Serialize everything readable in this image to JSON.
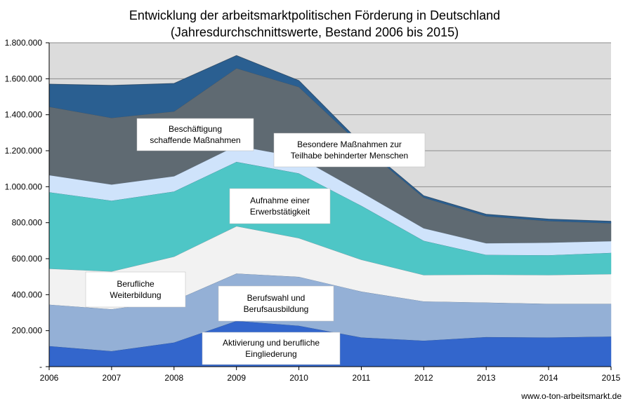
{
  "chart_data": {
    "type": "area",
    "stacked": true,
    "title": "Entwicklung der arbeitsmarktpolitischen Förderung in Deutschland",
    "subtitle": "(Jahresdurchschnittswerte, Bestand 2006 bis 2015)",
    "x": [
      "2006",
      "2007",
      "2008",
      "2009",
      "2010",
      "2011",
      "2012",
      "2013",
      "2014",
      "2015"
    ],
    "ylim": [
      0,
      1800000
    ],
    "yticks": [
      {
        "value": 0,
        "label": "-"
      },
      {
        "value": 200000,
        "label": "200.000"
      },
      {
        "value": 400000,
        "label": "400.000"
      },
      {
        "value": 600000,
        "label": "600.000"
      },
      {
        "value": 800000,
        "label": "800.000"
      },
      {
        "value": 1000000,
        "label": "1.000.000"
      },
      {
        "value": 1200000,
        "label": "1.200.000"
      },
      {
        "value": 1400000,
        "label": "1.400.000"
      },
      {
        "value": 1600000,
        "label": "1.600.000"
      },
      {
        "value": 1800000,
        "label": "1.800.000"
      }
    ],
    "grid": true,
    "plot_background": "#dcdcdc",
    "series": [
      {
        "color": "#3366cc",
        "values": [
          115000,
          87000,
          135000,
          255000,
          228000,
          163000,
          145000,
          165000,
          163000,
          168000
        ]
      },
      {
        "color": "#94b0d6",
        "values": [
          230000,
          233000,
          232000,
          263000,
          272000,
          255000,
          218000,
          192000,
          187000,
          182000
        ]
      },
      {
        "color": "#f2f2f2",
        "values": [
          200000,
          210000,
          245000,
          263000,
          215000,
          177000,
          147000,
          155000,
          160000,
          165000
        ]
      },
      {
        "color": "#4ec6c6",
        "values": [
          425000,
          393000,
          362000,
          358000,
          360000,
          300000,
          190000,
          110000,
          110000,
          118000
        ]
      },
      {
        "color": "#cfe3fb",
        "values": [
          95000,
          90000,
          85000,
          90000,
          90000,
          75000,
          70000,
          65000,
          70000,
          65000
        ]
      },
      {
        "color": "#5f6a72",
        "values": [
          380000,
          370000,
          360000,
          430000,
          390000,
          260000,
          170000,
          150000,
          120000,
          100000
        ]
      },
      {
        "color": "#2a5f91",
        "values": [
          125000,
          180000,
          155000,
          70000,
          35000,
          10000,
          10000,
          10000,
          10000,
          10000
        ]
      }
    ],
    "annotations": [
      {
        "lines": [
          "Aktivierung und berufliche",
          "Eingliederung"
        ]
      },
      {
        "lines": [
          "Berufswahl und",
          "Berufsausbildung"
        ]
      },
      {
        "lines": [
          "Berufliche",
          "Weiterbildung"
        ]
      },
      {
        "lines": [
          "Aufnahme einer",
          "Erwerbstätigkeit"
        ]
      },
      {
        "lines": [
          "Besondere Maßnahmen zur",
          "Teilhabe behinderter Menschen"
        ]
      },
      {
        "lines": [
          "Beschäftigung",
          "schaffende Maßnahmen"
        ]
      }
    ]
  },
  "source_text": "www.o-ton-arbeitsmarkt.de"
}
